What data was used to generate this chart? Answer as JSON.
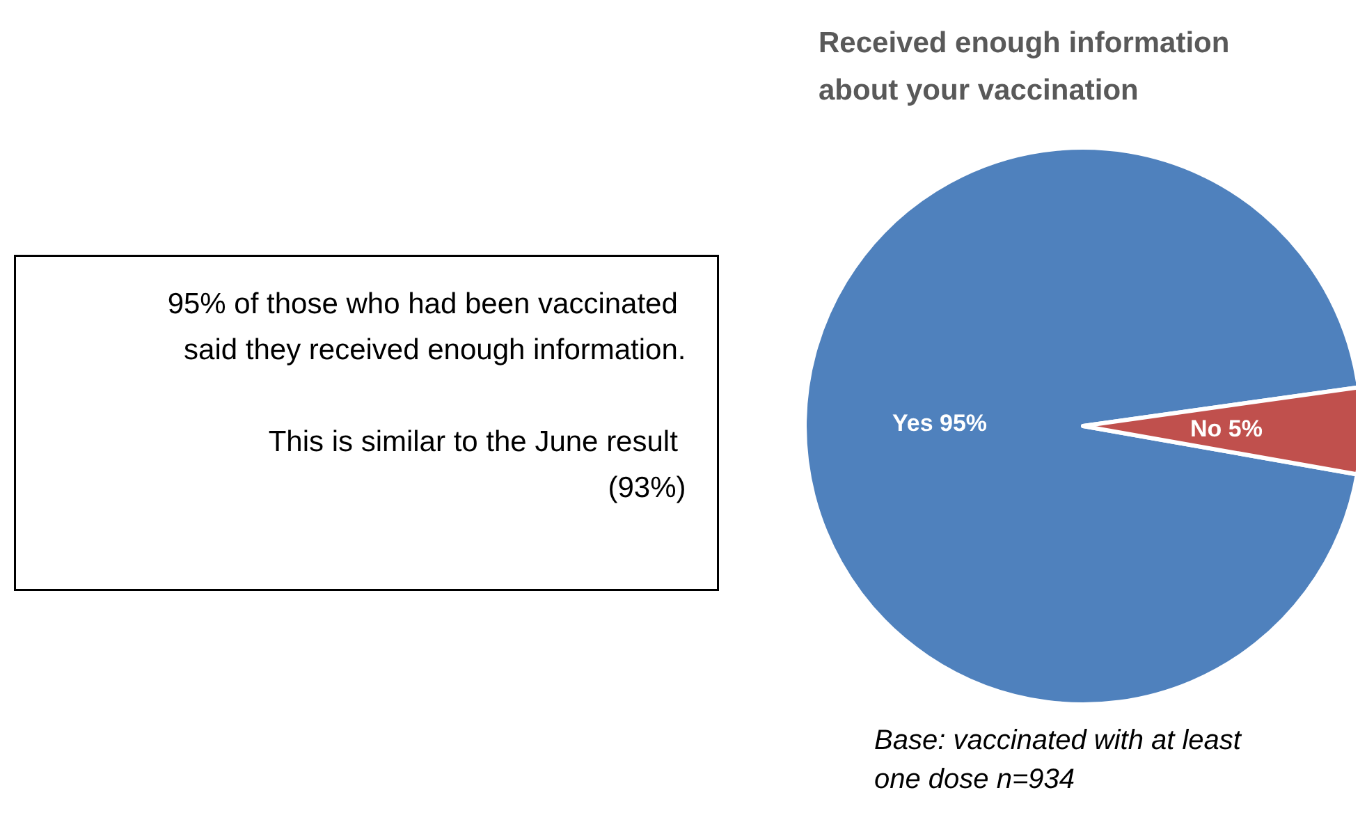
{
  "chart_data": {
    "type": "pie",
    "title": "Received enough information about your vaccination",
    "categories": [
      "Yes",
      "No"
    ],
    "values": [
      95,
      5
    ],
    "colors": [
      "#4f81bd",
      "#c0504d"
    ],
    "value_labels": [
      "95%",
      "5%"
    ],
    "legend": false,
    "annotations": [
      "95% of those who had been vaccinated said they received enough information.",
      "This is similar to the June result (93%)",
      "Base: vaccinated with at least one dose n=934"
    ]
  }
}
